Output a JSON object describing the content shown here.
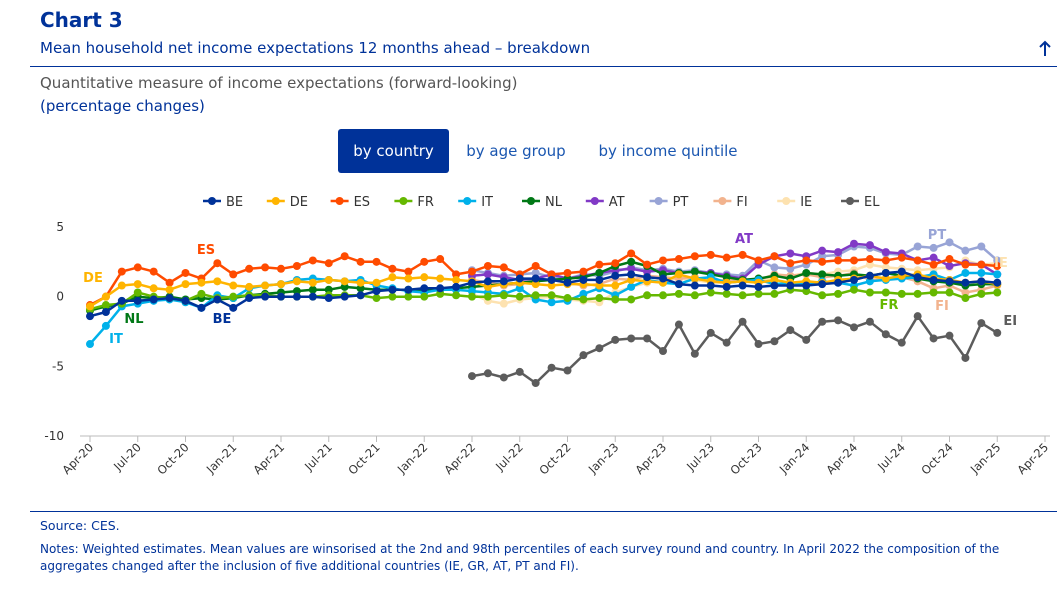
{
  "header": {
    "title": "Chart 3",
    "subtitle": "Mean household net income expectations 12 months ahead – breakdown"
  },
  "tabs": [
    "by country",
    "by age group",
    "by income quintile"
  ],
  "chart_data": {
    "type": "line",
    "title": "Quantitative measure of income expectations (forward-looking)",
    "subtitle": "(percentage changes)",
    "categories": [
      "Apr-20",
      null,
      null,
      "Jul-20",
      null,
      null,
      "Oct-20",
      null,
      null,
      "Jan-21",
      null,
      null,
      "Apr-21",
      null,
      null,
      "Jul-21",
      null,
      null,
      "Oct-21",
      null,
      null,
      "Jan-22",
      null,
      null,
      "Apr-22",
      null,
      null,
      "Jul-22",
      null,
      null,
      "Oct-22",
      null,
      null,
      "Jan-23",
      null,
      null,
      "Apr-23",
      null,
      null,
      "Jul-23",
      null,
      null,
      "Oct-23",
      null,
      null,
      "Jan-24",
      null,
      null,
      "Apr-24",
      null,
      null,
      "Jul-24",
      null,
      null,
      "Oct-24",
      null,
      null,
      "Jan-25",
      null,
      null,
      "Apr-25"
    ],
    "ylim": [
      -10,
      5
    ],
    "yticks": [
      -10,
      -5,
      0,
      5
    ],
    "grid": false,
    "series": [
      {
        "name": "BE",
        "color": "#003299",
        "values": [
          -1.4,
          -1.1,
          -0.3,
          -0.3,
          -0.2,
          -0.1,
          -0.3,
          -0.8,
          -0.2,
          -0.8,
          -0.1,
          0.0,
          0.0,
          0.0,
          0.0,
          -0.1,
          0.0,
          0.1,
          0.4,
          0.5,
          0.5,
          0.6,
          0.6,
          0.7,
          1.0,
          1.1,
          1.1,
          1.3,
          1.3,
          1.2,
          1.0,
          1.2,
          1.2,
          1.5,
          1.6,
          1.4,
          1.3,
          0.9,
          0.8,
          0.8,
          0.7,
          0.8,
          0.7,
          0.8,
          0.8,
          0.8,
          0.9,
          1.0,
          1.2,
          1.5,
          1.7,
          1.8,
          1.4,
          1.2,
          1.1,
          1.0,
          1.1,
          1.0,
          null,
          null,
          null
        ]
      },
      {
        "name": "DE",
        "color": "#ffb400",
        "values": [
          -0.7,
          0.0,
          0.8,
          0.9,
          0.6,
          0.5,
          0.9,
          1.0,
          1.1,
          0.8,
          0.7,
          0.8,
          0.9,
          1.1,
          1.0,
          1.2,
          1.1,
          1.0,
          1.0,
          1.4,
          1.3,
          1.4,
          1.3,
          1.2,
          1.1,
          0.7,
          0.9,
          1.0,
          0.9,
          0.8,
          0.9,
          0.9,
          0.8,
          0.8,
          1.2,
          1.1,
          1.0,
          1.6,
          1.3,
          1.1,
          1.0,
          1.1,
          1.0,
          1.2,
          1.0,
          1.1,
          1.0,
          1.2,
          1.3,
          1.5,
          1.3,
          1.5,
          1.6,
          1.3,
          1.2,
          1.0,
          1.1,
          0.9,
          null,
          null,
          null
        ]
      },
      {
        "name": "ES",
        "color": "#ff4b00",
        "values": [
          -0.6,
          0.0,
          1.8,
          2.1,
          1.8,
          1.0,
          1.7,
          1.3,
          2.4,
          1.6,
          2.0,
          2.1,
          2.0,
          2.2,
          2.6,
          2.4,
          2.9,
          2.5,
          2.5,
          2.0,
          1.8,
          2.5,
          2.7,
          1.6,
          1.8,
          2.2,
          2.1,
          1.6,
          2.2,
          1.6,
          1.7,
          1.8,
          2.3,
          2.4,
          3.1,
          2.3,
          2.6,
          2.7,
          2.9,
          3.0,
          2.8,
          3.0,
          2.6,
          2.9,
          2.4,
          2.6,
          2.5,
          2.6,
          2.6,
          2.7,
          2.6,
          2.8,
          2.6,
          2.3,
          2.7,
          2.3,
          2.3,
          2.2,
          null,
          null,
          null
        ]
      },
      {
        "name": "FR",
        "color": "#65b800",
        "values": [
          -0.9,
          -0.6,
          -0.5,
          0.3,
          0.0,
          -0.1,
          -0.3,
          0.2,
          -0.1,
          0.0,
          0.1,
          0.1,
          0.0,
          0.0,
          0.0,
          0.1,
          0.1,
          0.1,
          -0.1,
          0.0,
          0.0,
          0.0,
          0.2,
          0.1,
          0.0,
          0.0,
          0.1,
          0.0,
          0.1,
          0.1,
          -0.1,
          -0.2,
          -0.1,
          -0.2,
          -0.2,
          0.1,
          0.1,
          0.2,
          0.1,
          0.3,
          0.2,
          0.1,
          0.2,
          0.2,
          0.5,
          0.4,
          0.1,
          0.2,
          0.5,
          0.3,
          0.3,
          0.2,
          0.2,
          0.3,
          0.3,
          -0.1,
          0.2,
          0.3,
          null,
          null,
          null
        ]
      },
      {
        "name": "IT",
        "color": "#00b1ea",
        "values": [
          -3.4,
          -2.1,
          -0.7,
          -0.5,
          -0.3,
          -0.2,
          -0.4,
          -0.8,
          0.1,
          -0.1,
          0.6,
          0.8,
          0.9,
          1.2,
          1.3,
          1.2,
          1.1,
          1.2,
          0.8,
          0.6,
          0.4,
          0.3,
          0.5,
          0.5,
          0.4,
          0.3,
          0.2,
          0.6,
          -0.2,
          -0.4,
          -0.3,
          0.2,
          0.6,
          0.1,
          0.7,
          1.2,
          1.0,
          0.9,
          1.3,
          1.4,
          1.0,
          1.1,
          1.2,
          0.9,
          1.0,
          0.9,
          1.1,
          1.0,
          0.8,
          1.1,
          1.2,
          1.3,
          1.4,
          1.6,
          1.2,
          1.7,
          1.7,
          1.6,
          null,
          null,
          null
        ]
      },
      {
        "name": "NL",
        "color": "#007816",
        "values": [
          -1.0,
          -0.7,
          -0.5,
          0.0,
          -0.1,
          0.0,
          -0.2,
          -0.1,
          -0.2,
          -0.1,
          0.1,
          0.2,
          0.3,
          0.4,
          0.5,
          0.5,
          0.7,
          0.6,
          0.5,
          0.5,
          0.5,
          0.5,
          0.5,
          0.6,
          0.7,
          0.8,
          0.9,
          1.0,
          1.1,
          1.2,
          1.3,
          1.4,
          1.7,
          2.2,
          2.5,
          2.2,
          1.6,
          1.7,
          1.8,
          1.6,
          1.4,
          1.2,
          1.3,
          1.5,
          1.3,
          1.7,
          1.6,
          1.5,
          1.6,
          1.5,
          1.7,
          1.5,
          1.3,
          1.1,
          1.0,
          0.8,
          0.9,
          0.9,
          null,
          null,
          null
        ]
      },
      {
        "name": "AT",
        "color": "#8139c6",
        "values": [
          null,
          null,
          null,
          null,
          null,
          null,
          null,
          null,
          null,
          null,
          null,
          null,
          null,
          null,
          null,
          null,
          null,
          null,
          null,
          null,
          null,
          null,
          null,
          null,
          1.5,
          1.6,
          1.4,
          1.2,
          1.3,
          1.6,
          1.3,
          1.5,
          1.7,
          1.9,
          2.0,
          1.8,
          1.9,
          1.7,
          1.8,
          1.7,
          1.5,
          1.3,
          2.3,
          2.9,
          3.1,
          2.9,
          3.3,
          3.2,
          3.8,
          3.7,
          3.2,
          3.1,
          2.6,
          2.8,
          2.2,
          2.4,
          2.3,
          1.6,
          null,
          null,
          null
        ]
      },
      {
        "name": "PT",
        "color": "#98a4d6",
        "values": [
          null,
          null,
          null,
          null,
          null,
          null,
          null,
          null,
          null,
          null,
          null,
          null,
          null,
          null,
          null,
          null,
          null,
          null,
          null,
          null,
          null,
          null,
          null,
          null,
          1.9,
          1.7,
          1.5,
          1.6,
          1.7,
          1.4,
          1.3,
          1.6,
          1.5,
          1.8,
          2.1,
          1.9,
          2.0,
          1.8,
          1.9,
          1.7,
          1.6,
          1.5,
          2.6,
          2.1,
          2.0,
          2.3,
          2.9,
          3.0,
          3.6,
          3.5,
          3.1,
          3.0,
          3.6,
          3.5,
          3.9,
          3.3,
          3.6,
          2.6,
          null,
          null,
          null
        ]
      },
      {
        "name": "FI",
        "color": "#f2b38e",
        "values": [
          null,
          null,
          null,
          null,
          null,
          null,
          null,
          null,
          null,
          null,
          null,
          null,
          null,
          null,
          null,
          null,
          null,
          null,
          null,
          null,
          null,
          null,
          null,
          null,
          1.2,
          1.0,
          0.8,
          0.9,
          1.1,
          1.2,
          1.0,
          0.8,
          0.9,
          1.3,
          1.2,
          1.5,
          1.4,
          1.3,
          1.4,
          1.1,
          1.2,
          1.1,
          1.2,
          1.6,
          1.5,
          1.6,
          1.4,
          1.5,
          1.7,
          1.2,
          1.3,
          1.4,
          1.1,
          0.6,
          0.8,
          0.3,
          0.5,
          0.8,
          null,
          null,
          null
        ]
      },
      {
        "name": "IE",
        "color": "#fde2b0",
        "values": [
          null,
          null,
          null,
          null,
          null,
          null,
          null,
          null,
          null,
          null,
          null,
          null,
          null,
          null,
          null,
          null,
          null,
          null,
          null,
          null,
          null,
          null,
          null,
          null,
          0.2,
          -0.3,
          -0.5,
          -0.2,
          -0.1,
          0.0,
          -0.2,
          -0.3,
          -0.4,
          0.3,
          0.7,
          1.0,
          1.2,
          1.3,
          1.2,
          1.0,
          1.0,
          1.1,
          1.0,
          1.5,
          1.5,
          1.7,
          1.6,
          1.8,
          1.9,
          2.3,
          2.1,
          2.0,
          1.9,
          2.0,
          2.1,
          2.6,
          2.3,
          2.4,
          null,
          null,
          null
        ]
      },
      {
        "name": "EL",
        "color": "#5c5c5c",
        "values": [
          null,
          null,
          null,
          null,
          null,
          null,
          null,
          null,
          null,
          null,
          null,
          null,
          null,
          null,
          null,
          null,
          null,
          null,
          null,
          null,
          null,
          null,
          null,
          null,
          -5.7,
          -5.5,
          -5.8,
          -5.4,
          -6.2,
          -5.1,
          -5.3,
          -4.2,
          -3.7,
          -3.1,
          -3.0,
          -3.0,
          -3.9,
          -2.0,
          -4.1,
          -2.6,
          -3.3,
          -1.8,
          -3.4,
          -3.2,
          -2.4,
          -3.1,
          -1.8,
          -1.7,
          -2.2,
          -1.8,
          -2.7,
          -3.3,
          -1.4,
          -3.0,
          -2.8,
          -4.4,
          -1.9,
          -2.6,
          null,
          null,
          null
        ]
      }
    ]
  },
  "footer": {
    "source": "Source: CES.",
    "notes": "Notes: Weighted estimates. Mean values are winsorised at the 2nd and 98th percentiles of each survey round and country. In April 2022 the composition of the aggregates changed after the inclusion of five additional countries (IE, GR, AT, PT and FI)."
  }
}
